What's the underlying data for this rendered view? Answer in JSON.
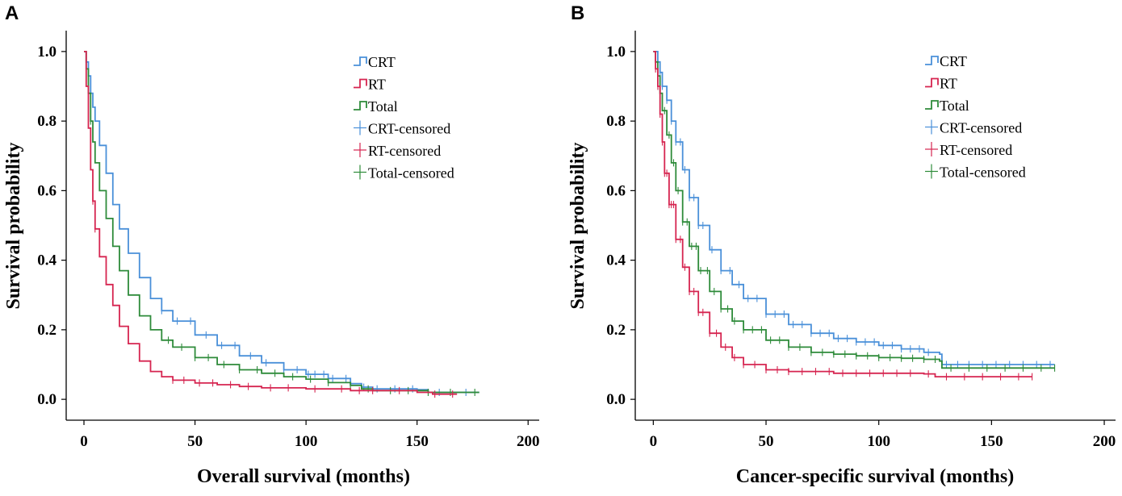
{
  "colors": {
    "CRT": "#4a90d9",
    "RT": "#d62550",
    "Total": "#2e8b3a"
  },
  "chart_data": [
    {
      "panel": "A",
      "type": "line",
      "subtype": "kaplan-meier",
      "xlabel": "Overall survival (months)",
      "ylabel": "Survival probability",
      "xlim": [
        -8,
        205
      ],
      "ylim": [
        -0.06,
        1.06
      ],
      "xticks": [
        0,
        50,
        100,
        150,
        200
      ],
      "yticks": [
        0.0,
        0.2,
        0.4,
        0.6,
        0.8,
        1.0
      ],
      "ytick_labels": [
        "0.0",
        "0.2",
        "0.4",
        "0.6",
        "0.8",
        "1.0"
      ],
      "legend_position": "top-right",
      "legend": [
        "CRT",
        "RT",
        "Total",
        "CRT-censored",
        "RT-censored",
        "Total-censored"
      ],
      "series": [
        {
          "name": "CRT",
          "points": [
            [
              0,
              1.0
            ],
            [
              1,
              0.97
            ],
            [
              2,
              0.93
            ],
            [
              3,
              0.88
            ],
            [
              4,
              0.84
            ],
            [
              5,
              0.8
            ],
            [
              7,
              0.73
            ],
            [
              10,
              0.65
            ],
            [
              13,
              0.56
            ],
            [
              16,
              0.49
            ],
            [
              20,
              0.42
            ],
            [
              25,
              0.35
            ],
            [
              30,
              0.29
            ],
            [
              35,
              0.255
            ],
            [
              40,
              0.225
            ],
            [
              50,
              0.185
            ],
            [
              60,
              0.155
            ],
            [
              70,
              0.125
            ],
            [
              80,
              0.105
            ],
            [
              90,
              0.085
            ],
            [
              100,
              0.072
            ],
            [
              110,
              0.06
            ],
            [
              120,
              0.045
            ],
            [
              125,
              0.035
            ],
            [
              130,
              0.03
            ],
            [
              150,
              0.028
            ],
            [
              155,
              0.02
            ],
            [
              178,
              0.02
            ]
          ],
          "censored": [
            35,
            42,
            48,
            55,
            62,
            68,
            75,
            82,
            90,
            96,
            101,
            104,
            108,
            112,
            118,
            126,
            132,
            140,
            148,
            160,
            172
          ]
        },
        {
          "name": "RT",
          "points": [
            [
              0,
              1.0
            ],
            [
              1,
              0.9
            ],
            [
              2,
              0.78
            ],
            [
              3,
              0.66
            ],
            [
              4,
              0.57
            ],
            [
              5,
              0.49
            ],
            [
              7,
              0.41
            ],
            [
              10,
              0.33
            ],
            [
              13,
              0.27
            ],
            [
              16,
              0.21
            ],
            [
              20,
              0.16
            ],
            [
              25,
              0.11
            ],
            [
              30,
              0.08
            ],
            [
              35,
              0.065
            ],
            [
              40,
              0.055
            ],
            [
              50,
              0.047
            ],
            [
              60,
              0.042
            ],
            [
              70,
              0.037
            ],
            [
              80,
              0.033
            ],
            [
              100,
              0.03
            ],
            [
              120,
              0.025
            ],
            [
              150,
              0.02
            ],
            [
              157,
              0.015
            ],
            [
              168,
              0.015
            ]
          ],
          "censored": [
            4,
            5,
            40,
            45,
            52,
            58,
            66,
            74,
            84,
            92,
            104,
            116,
            124,
            130,
            142,
            158,
            166
          ]
        },
        {
          "name": "Total",
          "points": [
            [
              0,
              1.0
            ],
            [
              1,
              0.95
            ],
            [
              2,
              0.88
            ],
            [
              3,
              0.8
            ],
            [
              4,
              0.74
            ],
            [
              5,
              0.68
            ],
            [
              7,
              0.6
            ],
            [
              10,
              0.52
            ],
            [
              13,
              0.44
            ],
            [
              16,
              0.37
            ],
            [
              20,
              0.3
            ],
            [
              25,
              0.24
            ],
            [
              30,
              0.2
            ],
            [
              35,
              0.17
            ],
            [
              40,
              0.15
            ],
            [
              50,
              0.12
            ],
            [
              60,
              0.1
            ],
            [
              70,
              0.085
            ],
            [
              80,
              0.075
            ],
            [
              90,
              0.065
            ],
            [
              100,
              0.058
            ],
            [
              110,
              0.048
            ],
            [
              120,
              0.04
            ],
            [
              125,
              0.03
            ],
            [
              130,
              0.025
            ],
            [
              150,
              0.025
            ],
            [
              155,
              0.02
            ],
            [
              178,
              0.02
            ]
          ],
          "censored": [
            3,
            38,
            44,
            50,
            56,
            63,
            70,
            78,
            86,
            94,
            102,
            110,
            120,
            128,
            138,
            146,
            155,
            165,
            176
          ]
        }
      ]
    },
    {
      "panel": "B",
      "type": "line",
      "subtype": "kaplan-meier",
      "xlabel": "Cancer-specific survival (months)",
      "ylabel": "Survival probability",
      "xlim": [
        -8,
        205
      ],
      "ylim": [
        -0.06,
        1.06
      ],
      "xticks": [
        0,
        50,
        100,
        150,
        200
      ],
      "yticks": [
        0.0,
        0.2,
        0.4,
        0.6,
        0.8,
        1.0
      ],
      "ytick_labels": [
        "0.0",
        "0.2",
        "0.4",
        "0.6",
        "0.8",
        "1.0"
      ],
      "legend_position": "top-right",
      "legend": [
        "CRT",
        "RT",
        "Total",
        "CRT-censored",
        "RT-censored",
        "Total-censored"
      ],
      "series": [
        {
          "name": "CRT",
          "points": [
            [
              0,
              1.0
            ],
            [
              2,
              0.97
            ],
            [
              3,
              0.94
            ],
            [
              4,
              0.9
            ],
            [
              6,
              0.86
            ],
            [
              8,
              0.8
            ],
            [
              10,
              0.74
            ],
            [
              13,
              0.66
            ],
            [
              16,
              0.58
            ],
            [
              20,
              0.5
            ],
            [
              25,
              0.43
            ],
            [
              30,
              0.37
            ],
            [
              35,
              0.33
            ],
            [
              40,
              0.29
            ],
            [
              50,
              0.245
            ],
            [
              60,
              0.215
            ],
            [
              70,
              0.19
            ],
            [
              80,
              0.175
            ],
            [
              90,
              0.165
            ],
            [
              100,
              0.155
            ],
            [
              110,
              0.145
            ],
            [
              120,
              0.135
            ],
            [
              127,
              0.13
            ],
            [
              128,
              0.1
            ],
            [
              178,
              0.1
            ]
          ],
          "censored": [
            3,
            4,
            6,
            8,
            10,
            12,
            14,
            16,
            18,
            20,
            22,
            26,
            30,
            34,
            38,
            42,
            46,
            50,
            54,
            58,
            62,
            66,
            70,
            74,
            78,
            82,
            86,
            90,
            94,
            98,
            102,
            106,
            110,
            114,
            118,
            122,
            130,
            135,
            140,
            146,
            152,
            158,
            164,
            170,
            176
          ]
        },
        {
          "name": "RT",
          "points": [
            [
              0,
              1.0
            ],
            [
              1,
              0.95
            ],
            [
              2,
              0.9
            ],
            [
              3,
              0.82
            ],
            [
              4,
              0.74
            ],
            [
              5,
              0.65
            ],
            [
              7,
              0.56
            ],
            [
              10,
              0.46
            ],
            [
              13,
              0.38
            ],
            [
              16,
              0.31
            ],
            [
              20,
              0.25
            ],
            [
              25,
              0.19
            ],
            [
              30,
              0.15
            ],
            [
              35,
              0.12
            ],
            [
              40,
              0.1
            ],
            [
              50,
              0.085
            ],
            [
              60,
              0.08
            ],
            [
              80,
              0.075
            ],
            [
              100,
              0.075
            ],
            [
              120,
              0.073
            ],
            [
              125,
              0.065
            ],
            [
              168,
              0.065
            ]
          ],
          "censored": [
            1,
            2,
            3,
            4,
            5,
            6,
            7,
            8,
            9,
            10,
            12,
            14,
            16,
            18,
            20,
            22,
            25,
            28,
            32,
            36,
            40,
            45,
            50,
            55,
            60,
            66,
            72,
            78,
            84,
            90,
            96,
            102,
            108,
            114,
            122,
            130,
            138,
            146,
            154,
            162,
            168
          ]
        },
        {
          "name": "Total",
          "points": [
            [
              0,
              1.0
            ],
            [
              1,
              0.97
            ],
            [
              2,
              0.93
            ],
            [
              3,
              0.88
            ],
            [
              4,
              0.83
            ],
            [
              6,
              0.76
            ],
            [
              8,
              0.68
            ],
            [
              10,
              0.6
            ],
            [
              13,
              0.51
            ],
            [
              16,
              0.44
            ],
            [
              20,
              0.37
            ],
            [
              25,
              0.31
            ],
            [
              30,
              0.26
            ],
            [
              35,
              0.225
            ],
            [
              40,
              0.2
            ],
            [
              50,
              0.17
            ],
            [
              60,
              0.15
            ],
            [
              70,
              0.135
            ],
            [
              80,
              0.13
            ],
            [
              90,
              0.125
            ],
            [
              100,
              0.12
            ],
            [
              110,
              0.118
            ],
            [
              120,
              0.115
            ],
            [
              127,
              0.11
            ],
            [
              128,
              0.09
            ],
            [
              178,
              0.09
            ]
          ],
          "censored": [
            2,
            3,
            5,
            7,
            9,
            11,
            13,
            15,
            17,
            19,
            21,
            24,
            27,
            30,
            33,
            36,
            40,
            44,
            48,
            52,
            56,
            60,
            65,
            70,
            75,
            80,
            85,
            90,
            95,
            100,
            105,
            110,
            115,
            120,
            125,
            132,
            140,
            148,
            156,
            164,
            172,
            178
          ]
        }
      ]
    }
  ]
}
